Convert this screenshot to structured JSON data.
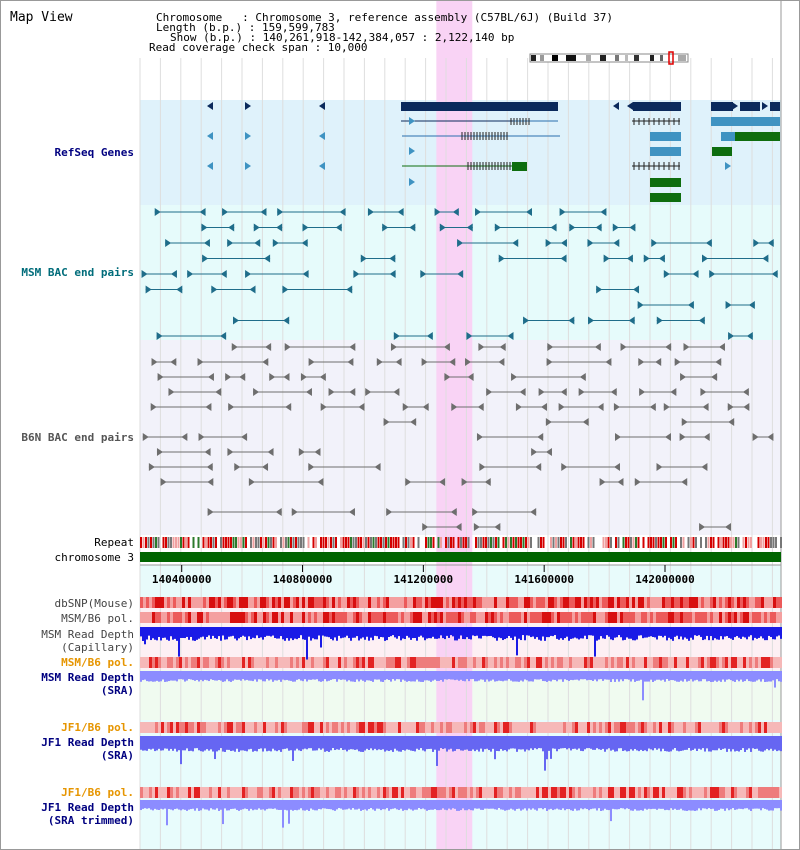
{
  "page_title": "Map View",
  "info": {
    "line1": "Chromosome   : Chromosome 3, reference assembly (C57BL/6J) (Build 37)",
    "line2": "Length (b.p.) : 159,599,783",
    "line3": "Show (b.p.) : 140,261,918-142,384,057 : 2,122,140 bp",
    "line4": "Read coverage check span : 10,000"
  },
  "tracks": {
    "refseq": "RefSeq Genes",
    "msm_bac": "MSM BAC end pairs",
    "b6n_bac": "B6N BAC end pairs",
    "repeat": "Repeat",
    "chromosome": "chromosome 3",
    "dbsnp": "dbSNP(Mouse)",
    "msm_b6_pol_1": "MSM/B6 pol.",
    "msm_read_cap_1": "MSM Read Depth",
    "msm_read_cap_2": "(Capillary)",
    "msm_b6_pol_2": "MSM/B6 pol.",
    "msm_read_sra_1": "MSM Read Depth",
    "msm_read_sra_2": "(SRA)",
    "jf1_b6_pol_1": "JF1/B6 pol.",
    "jf1_read_sra_1": "JF1 Read Depth",
    "jf1_read_sra_2": "(SRA)",
    "jf1_b6_pol_2": "JF1/B6 pol.",
    "jf1_read_trim_1": "JF1 Read Depth",
    "jf1_read_trim_2": "(SRA trimmed)"
  },
  "axis_ticks": [
    {
      "value": 140400000,
      "label": "140400000"
    },
    {
      "value": 140800000,
      "label": "140800000"
    },
    {
      "value": 141200000,
      "label": "141200000"
    },
    {
      "value": 141600000,
      "label": "141600000"
    },
    {
      "value": 142000000,
      "label": "142000000"
    }
  ],
  "view": {
    "start": 140261918,
    "end": 142384057
  },
  "highlight": {
    "start": 141243000,
    "end": 141362000
  },
  "colors": {
    "refseq_bg": "#dff2fb",
    "msm_bg": "#e6fbfb",
    "b6n_bg": "#f2f2fa",
    "sra_bg": "#f0fbf0",
    "jf1_bg": "#e8fcfc",
    "highlight": "#f9d3f5",
    "gene_dark": "#0b2a5c",
    "gene_mid": "#3f93c2",
    "gene_green": "#0e6d0e",
    "msm_bac": "#1f6d8a",
    "b6n_bac": "#6e6e6e",
    "chromosome": "#006400",
    "label_navy": "#000080",
    "label_teal": "#006c7a",
    "label_orange": "#e69500"
  }
}
